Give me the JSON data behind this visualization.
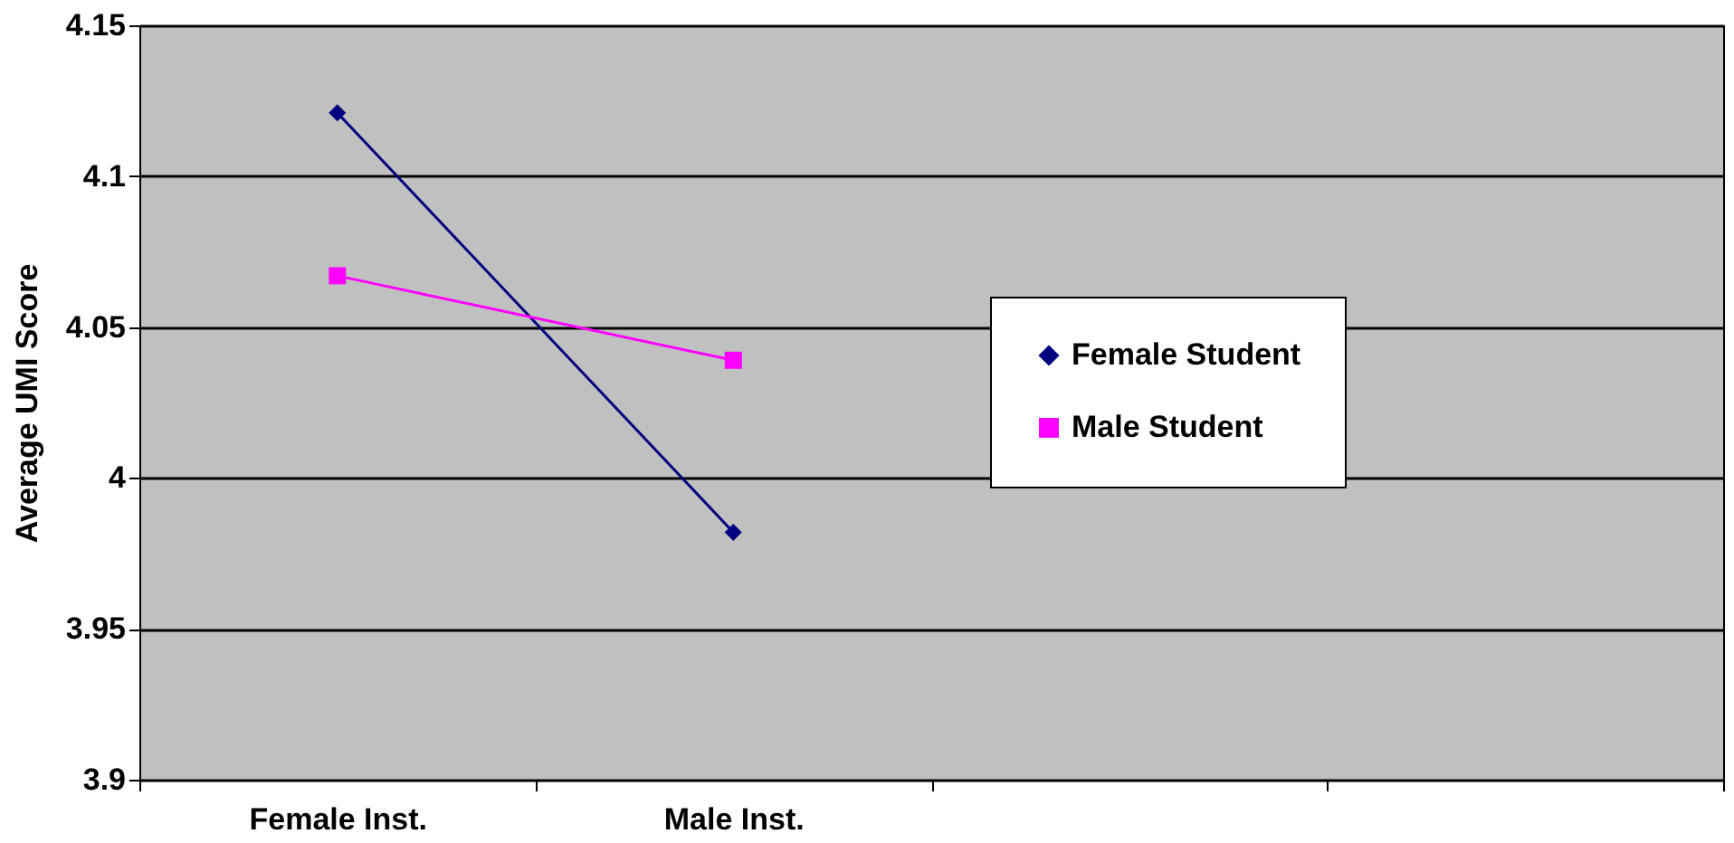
{
  "chart_data": {
    "type": "line",
    "ylabel": "Average UMI Score",
    "categories": [
      "Female Inst.",
      "Male Inst.",
      null,
      null
    ],
    "series": [
      {
        "name": "Female Student",
        "color": "#000080",
        "marker": "diamond",
        "values": [
          4.121,
          3.982,
          null,
          null
        ]
      },
      {
        "name": "Male Student",
        "color": "#ff00ff",
        "marker": "square",
        "values": [
          4.067,
          4.039,
          null,
          null
        ]
      }
    ],
    "ylim": [
      3.9,
      4.15
    ],
    "yticks": [
      3.9,
      3.95,
      4,
      4.05,
      4.1,
      4.15
    ],
    "grid": "y",
    "legend": "right"
  }
}
